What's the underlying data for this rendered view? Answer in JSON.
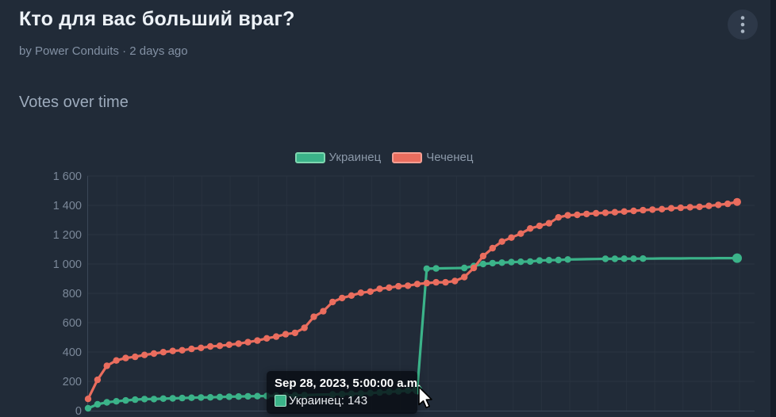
{
  "poll": {
    "title": "Кто для вас больший враг?",
    "byline": "by Power Conduits · 2 days ago",
    "section_heading": "Votes over time"
  },
  "colors": {
    "background": "#212b38",
    "green_series": "#3bb389",
    "green_legend_border": "#7fd7b0",
    "red_series": "#ea6d5e",
    "red_legend_border": "#f59f93",
    "grid_line": "#2a3442",
    "axis_line": "#3a4757",
    "tick_text": "#7b8899",
    "tooltip_swatch_border": "#a9e4cb"
  },
  "chart_data": {
    "type": "line",
    "title": "Votes over time",
    "legend_position": "top-center",
    "grid": true,
    "ylim": [
      0,
      1600
    ],
    "y_ticks": [
      "0",
      "200",
      "400",
      "600",
      "800",
      "1 000",
      "1 200",
      "1 400",
      "1 600"
    ],
    "x_axis": {
      "type": "time",
      "labels_visible": false,
      "points": 70
    },
    "series": [
      {
        "name": "Украинец",
        "color": "#3bb389",
        "values": [
          16,
          43,
          57,
          64,
          70,
          75,
          79,
          79,
          82,
          84,
          86,
          88,
          90,
          91,
          93,
          95,
          96,
          98,
          99,
          100,
          102,
          103,
          105,
          106,
          108,
          110,
          111,
          113,
          115,
          117,
          120,
          124,
          128,
          132,
          137,
          143,
          968,
          970,
          971,
          972,
          973,
          986,
          1000,
          1006,
          1009,
          1013,
          1015,
          1017,
          1024,
          1026,
          1027,
          1031,
          1032,
          1033,
          1034,
          1035,
          1035,
          1036,
          1036,
          1037,
          1037,
          1038,
          1038,
          1038,
          1039,
          1039,
          1039,
          1040,
          1040,
          1040
        ],
        "dot_gaps": [
          [
            24,
            25
          ],
          [
            38,
            39
          ],
          [
            52,
            54
          ],
          [
            60,
            68
          ]
        ]
      },
      {
        "name": "Чеченец",
        "color": "#ea6d5e",
        "values": [
          80,
          210,
          306,
          342,
          359,
          367,
          380,
          389,
          399,
          407,
          412,
          421,
          428,
          438,
          442,
          450,
          457,
          467,
          478,
          493,
          505,
          521,
          530,
          565,
          640,
          678,
          741,
          768,
          785,
          804,
          812,
          831,
          839,
          848,
          852,
          863,
          870,
          875,
          875,
          884,
          911,
          973,
          1054,
          1108,
          1153,
          1180,
          1207,
          1242,
          1260,
          1278,
          1318,
          1332,
          1335,
          1341,
          1346,
          1349,
          1353,
          1358,
          1362,
          1367,
          1371,
          1374,
          1380,
          1383,
          1387,
          1390,
          1396,
          1403,
          1410,
          1423
        ],
        "dot_gaps": []
      }
    ],
    "tooltip": {
      "date_label": "Sep 28, 2023, 5:00:00 a.m.",
      "series": "Украинец",
      "value": 143,
      "point_index": 35
    }
  }
}
